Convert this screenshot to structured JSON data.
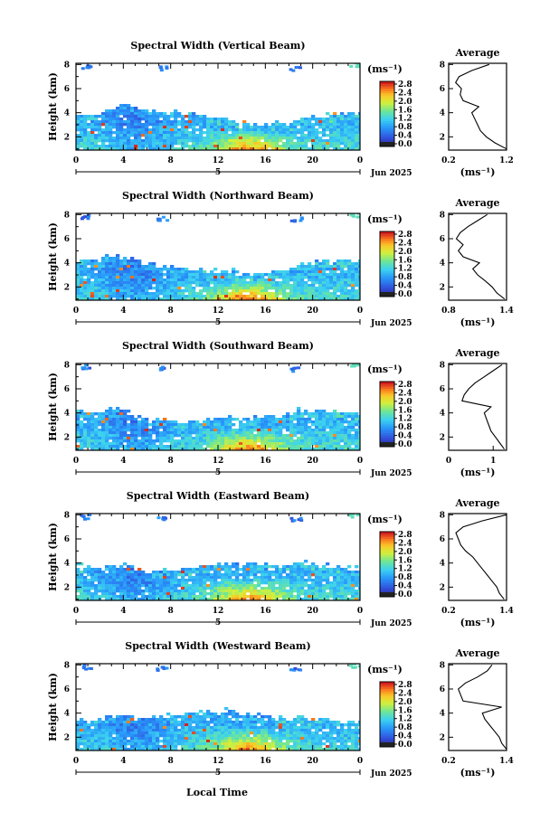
{
  "xlabel": "Local Time",
  "chart_data": [
    {
      "type": "heatmap",
      "title": "Spectral Width (Vertical Beam)",
      "ylabel": "Height (km)",
      "xticks": [
        "0",
        "4",
        "8",
        "12",
        "16",
        "20",
        "0"
      ],
      "yticks": [
        "2",
        "4",
        "6",
        "8"
      ],
      "date_day": "5",
      "date_label": "Jun 2025",
      "unit_label": "(ms⁻¹)",
      "colorbar_ticks": [
        "0.0",
        "0.4",
        "0.8",
        "1.2",
        "1.6",
        "2.0",
        "2.4",
        "2.8"
      ],
      "avg": {
        "title": "Average",
        "xticks": [
          "0.2",
          "1.2"
        ],
        "xlim": [
          0.2,
          1.2
        ],
        "unit": "(ms⁻¹)",
        "profile": [
          {
            "height": 1.0,
            "value": 1.2
          },
          {
            "height": 1.5,
            "value": 1.0
          },
          {
            "height": 2.0,
            "value": 0.85
          },
          {
            "height": 2.5,
            "value": 0.75
          },
          {
            "height": 3.0,
            "value": 0.7
          },
          {
            "height": 3.5,
            "value": 0.65
          },
          {
            "height": 4.0,
            "value": 0.6
          },
          {
            "height": 4.5,
            "value": 0.72
          },
          {
            "height": 5.0,
            "value": 0.45
          },
          {
            "height": 5.5,
            "value": 0.4
          },
          {
            "height": 6.0,
            "value": 0.42
          },
          {
            "height": 6.5,
            "value": 0.32
          },
          {
            "height": 7.0,
            "value": 0.38
          },
          {
            "height": 7.5,
            "value": 0.6
          },
          {
            "height": 8.0,
            "value": 0.9
          }
        ]
      }
    },
    {
      "type": "heatmap",
      "title": "Spectral Width (Northward Beam)",
      "ylabel": "Height (km)",
      "xticks": [
        "0",
        "4",
        "8",
        "12",
        "16",
        "20",
        "0"
      ],
      "yticks": [
        "2",
        "4",
        "6",
        "8"
      ],
      "date_day": "5",
      "date_label": "Jun 2025",
      "unit_label": "(ms⁻¹)",
      "colorbar_ticks": [
        "0.0",
        "0.4",
        "0.8",
        "1.2",
        "1.6",
        "2.0",
        "2.4",
        "2.8"
      ],
      "avg": {
        "title": "Average",
        "xticks": [
          "0.8",
          "1.4"
        ],
        "xlim": [
          0.8,
          1.4
        ],
        "unit": "(ms⁻¹)",
        "profile": [
          {
            "height": 1.0,
            "value": 1.38
          },
          {
            "height": 1.5,
            "value": 1.3
          },
          {
            "height": 2.0,
            "value": 1.25
          },
          {
            "height": 2.5,
            "value": 1.18
          },
          {
            "height": 3.0,
            "value": 1.1
          },
          {
            "height": 3.5,
            "value": 1.05
          },
          {
            "height": 4.0,
            "value": 1.12
          },
          {
            "height": 4.5,
            "value": 0.95
          },
          {
            "height": 5.0,
            "value": 0.9
          },
          {
            "height": 5.5,
            "value": 0.95
          },
          {
            "height": 6.0,
            "value": 0.88
          },
          {
            "height": 6.5,
            "value": 0.92
          },
          {
            "height": 7.0,
            "value": 1.0
          },
          {
            "height": 7.5,
            "value": 1.1
          },
          {
            "height": 8.0,
            "value": 1.2
          }
        ]
      }
    },
    {
      "type": "heatmap",
      "title": "Spectral Width (Southward Beam)",
      "ylabel": "Height (km)",
      "xticks": [
        "0",
        "4",
        "8",
        "12",
        "16",
        "20",
        "0"
      ],
      "yticks": [
        "2",
        "4",
        "6",
        "8"
      ],
      "date_day": "5",
      "date_label": "Jun 2025",
      "unit_label": "(ms⁻¹)",
      "colorbar_ticks": [
        "0.0",
        "0.4",
        "0.8",
        "1.2",
        "1.6",
        "2.0",
        "2.4",
        "2.8"
      ],
      "avg": {
        "title": "Average",
        "xticks": [
          "0",
          "1"
        ],
        "xlim": [
          0,
          1.3
        ],
        "unit": "(ms⁻¹)",
        "profile": [
          {
            "height": 1.0,
            "value": 1.25
          },
          {
            "height": 1.5,
            "value": 1.15
          },
          {
            "height": 2.0,
            "value": 1.05
          },
          {
            "height": 2.5,
            "value": 0.95
          },
          {
            "height": 3.0,
            "value": 0.9
          },
          {
            "height": 3.5,
            "value": 0.85
          },
          {
            "height": 4.0,
            "value": 0.8
          },
          {
            "height": 4.5,
            "value": 0.95
          },
          {
            "height": 5.0,
            "value": 0.3
          },
          {
            "height": 5.5,
            "value": 0.35
          },
          {
            "height": 6.0,
            "value": 0.45
          },
          {
            "height": 6.5,
            "value": 0.6
          },
          {
            "height": 7.0,
            "value": 0.8
          },
          {
            "height": 7.5,
            "value": 1.0
          },
          {
            "height": 8.0,
            "value": 1.2
          }
        ]
      }
    },
    {
      "type": "heatmap",
      "title": "Spectral Width (Eastward Beam)",
      "ylabel": "Height (km)",
      "xticks": [
        "0",
        "4",
        "8",
        "12",
        "16",
        "20",
        "0"
      ],
      "yticks": [
        "2",
        "4",
        "6",
        "8"
      ],
      "date_day": "5",
      "date_label": "Jun 2025",
      "unit_label": "(ms⁻¹)",
      "colorbar_ticks": [
        "0.0",
        "0.4",
        "0.8",
        "1.2",
        "1.6",
        "2.0",
        "2.4",
        "2.8"
      ],
      "avg": {
        "title": "Average",
        "xticks": [
          "0.2",
          "1.4"
        ],
        "xlim": [
          0.2,
          1.4
        ],
        "unit": "(ms⁻¹)",
        "profile": [
          {
            "height": 1.0,
            "value": 1.35
          },
          {
            "height": 1.5,
            "value": 1.25
          },
          {
            "height": 2.0,
            "value": 1.2
          },
          {
            "height": 2.5,
            "value": 1.1
          },
          {
            "height": 3.0,
            "value": 1.0
          },
          {
            "height": 3.5,
            "value": 0.9
          },
          {
            "height": 4.0,
            "value": 0.8
          },
          {
            "height": 4.5,
            "value": 0.7
          },
          {
            "height": 5.0,
            "value": 0.55
          },
          {
            "height": 5.5,
            "value": 0.45
          },
          {
            "height": 6.0,
            "value": 0.4
          },
          {
            "height": 6.5,
            "value": 0.35
          },
          {
            "height": 7.0,
            "value": 0.5
          },
          {
            "height": 7.5,
            "value": 0.9
          },
          {
            "height": 8.0,
            "value": 1.4
          }
        ]
      }
    },
    {
      "type": "heatmap",
      "title": "Spectral Width (Westward Beam)",
      "ylabel": "Height (km)",
      "xticks": [
        "0",
        "4",
        "8",
        "12",
        "16",
        "20",
        "0"
      ],
      "yticks": [
        "2",
        "4",
        "6",
        "8"
      ],
      "date_day": "5",
      "date_label": "Jun 2025",
      "unit_label": "(ms⁻¹)",
      "colorbar_ticks": [
        "0.0",
        "0.4",
        "0.8",
        "1.2",
        "1.6",
        "2.0",
        "2.4",
        "2.8"
      ],
      "avg": {
        "title": "Average",
        "xticks": [
          "0.2",
          "1.4"
        ],
        "xlim": [
          0.2,
          1.4
        ],
        "unit": "(ms⁻¹)",
        "profile": [
          {
            "height": 1.0,
            "value": 1.4
          },
          {
            "height": 1.5,
            "value": 1.3
          },
          {
            "height": 2.0,
            "value": 1.25
          },
          {
            "height": 2.5,
            "value": 1.15
          },
          {
            "height": 3.0,
            "value": 1.05
          },
          {
            "height": 3.5,
            "value": 0.95
          },
          {
            "height": 4.0,
            "value": 0.9
          },
          {
            "height": 4.5,
            "value": 1.3
          },
          {
            "height": 5.0,
            "value": 0.5
          },
          {
            "height": 5.5,
            "value": 0.45
          },
          {
            "height": 6.0,
            "value": 0.4
          },
          {
            "height": 6.5,
            "value": 0.55
          },
          {
            "height": 7.0,
            "value": 0.8
          },
          {
            "height": 7.5,
            "value": 1.0
          },
          {
            "height": 8.0,
            "value": 1.1
          }
        ]
      }
    }
  ]
}
